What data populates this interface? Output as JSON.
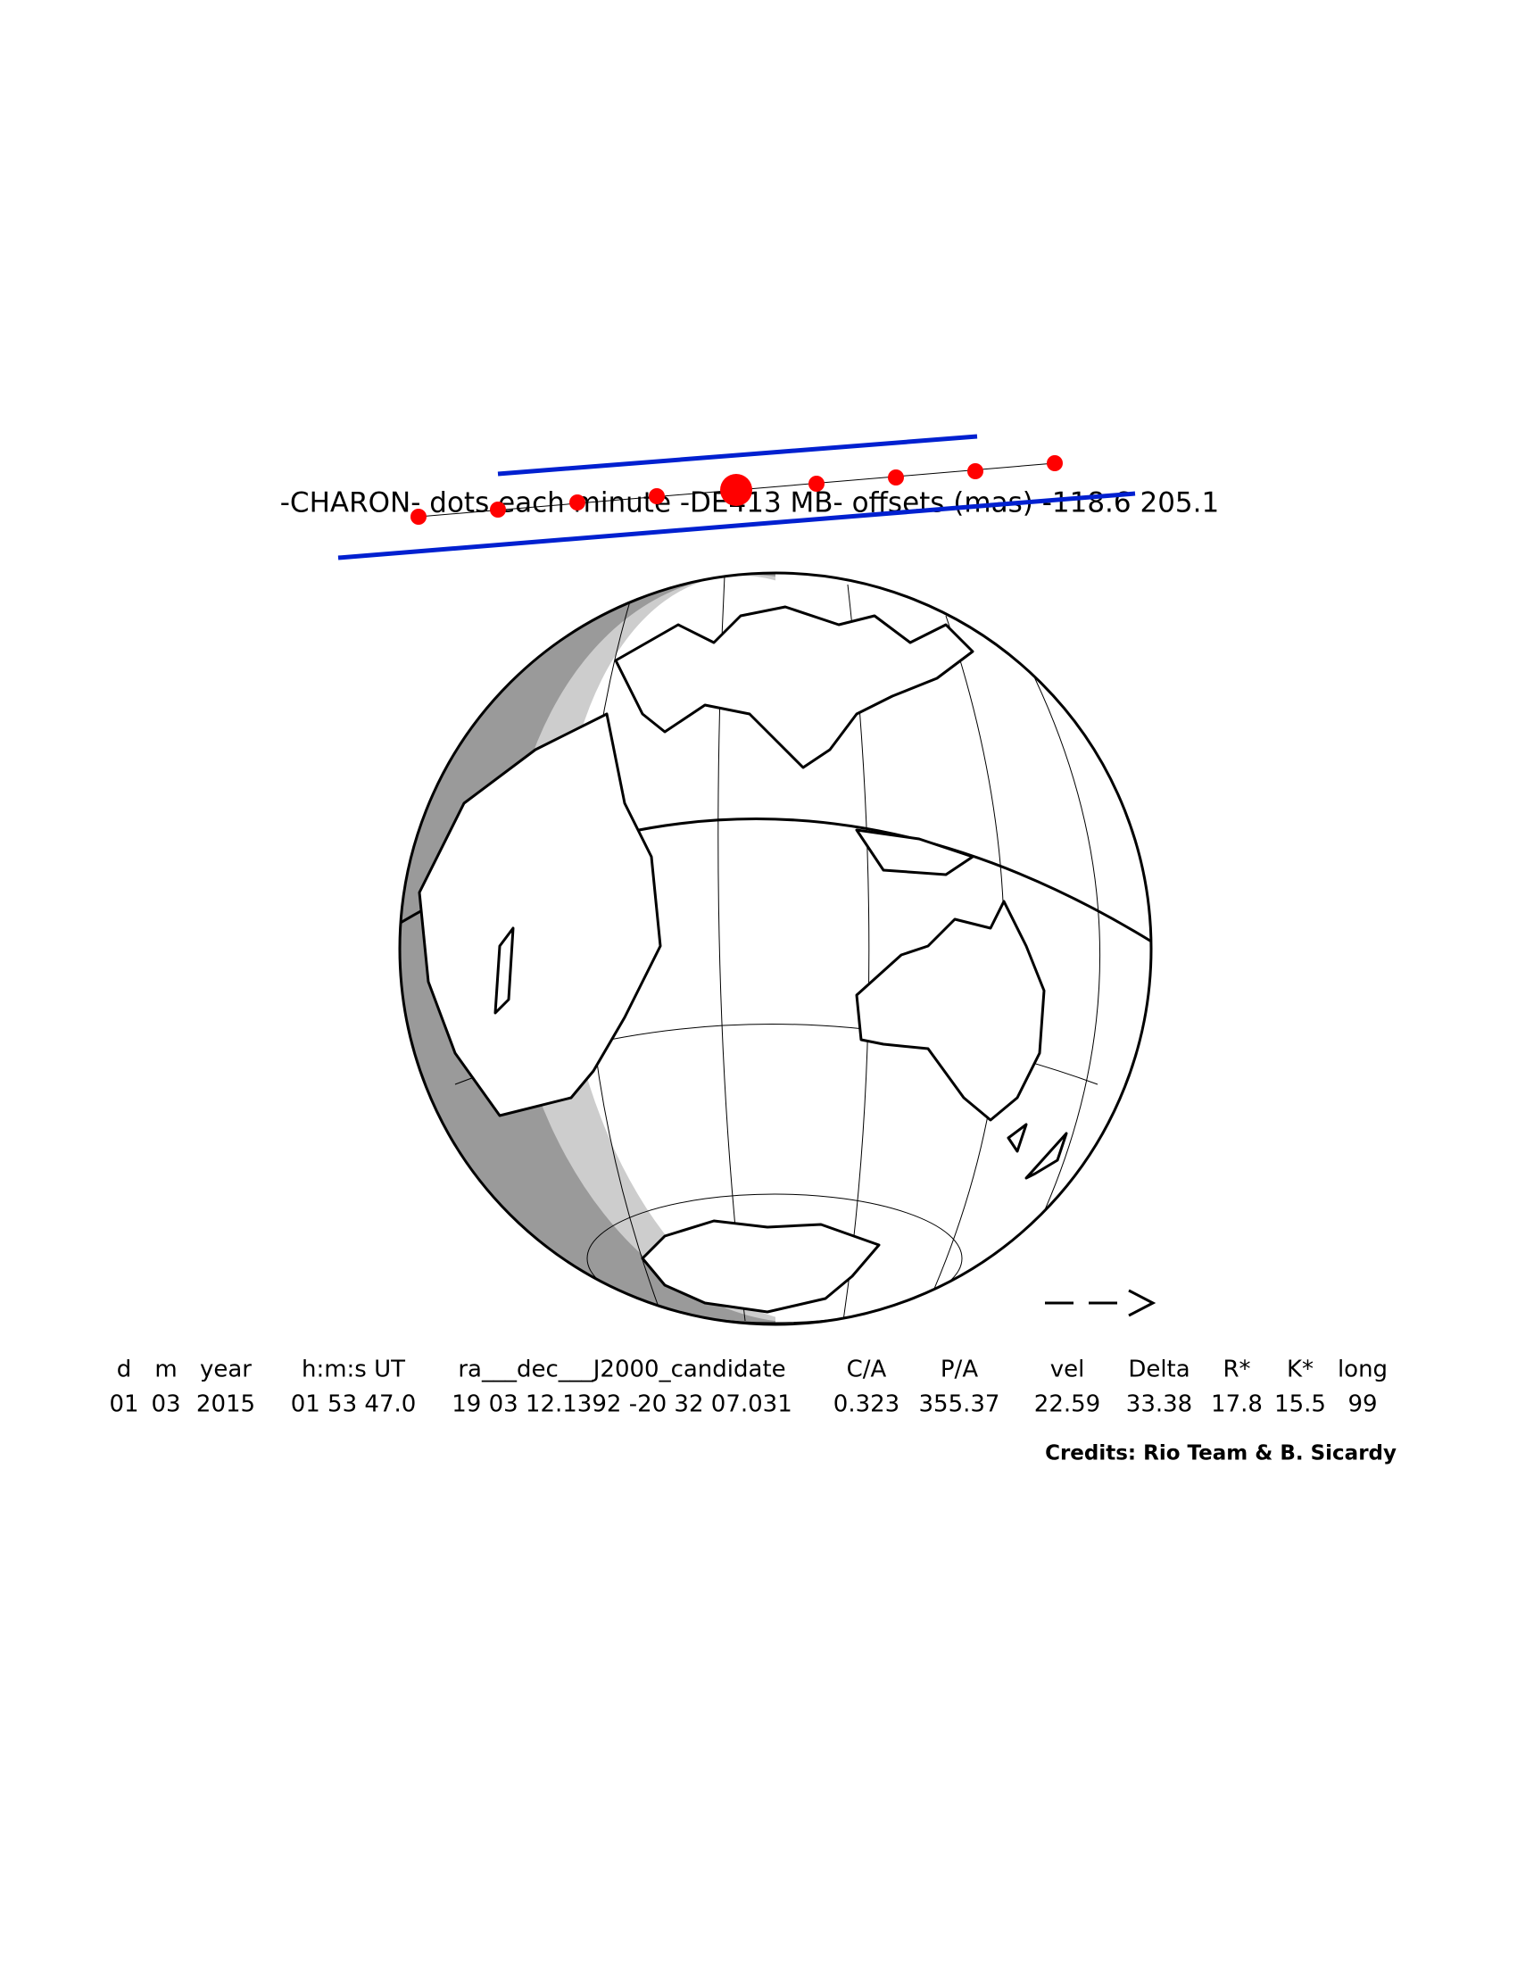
{
  "header": {
    "title": "-CHARON- dots each minute -DE413 MB- offsets (mas) -118.6 205.1"
  },
  "table": {
    "columns": [
      "d",
      "m",
      "year",
      "h:m:s UT",
      "ra___dec___J2000_candidate",
      "C/A",
      "P/A",
      "vel",
      "Delta",
      "R*",
      "K*",
      "long"
    ],
    "rows": [
      [
        "01",
        "03",
        "2015",
        "01 53 47.0",
        "19 03 12.1392 -20 32 07.031",
        "0.323",
        "355.37",
        "22.59",
        "33.38",
        "17.8",
        "15.5",
        "99"
      ]
    ]
  },
  "credits": "Credits: Rio Team & B. Sicardy"
}
